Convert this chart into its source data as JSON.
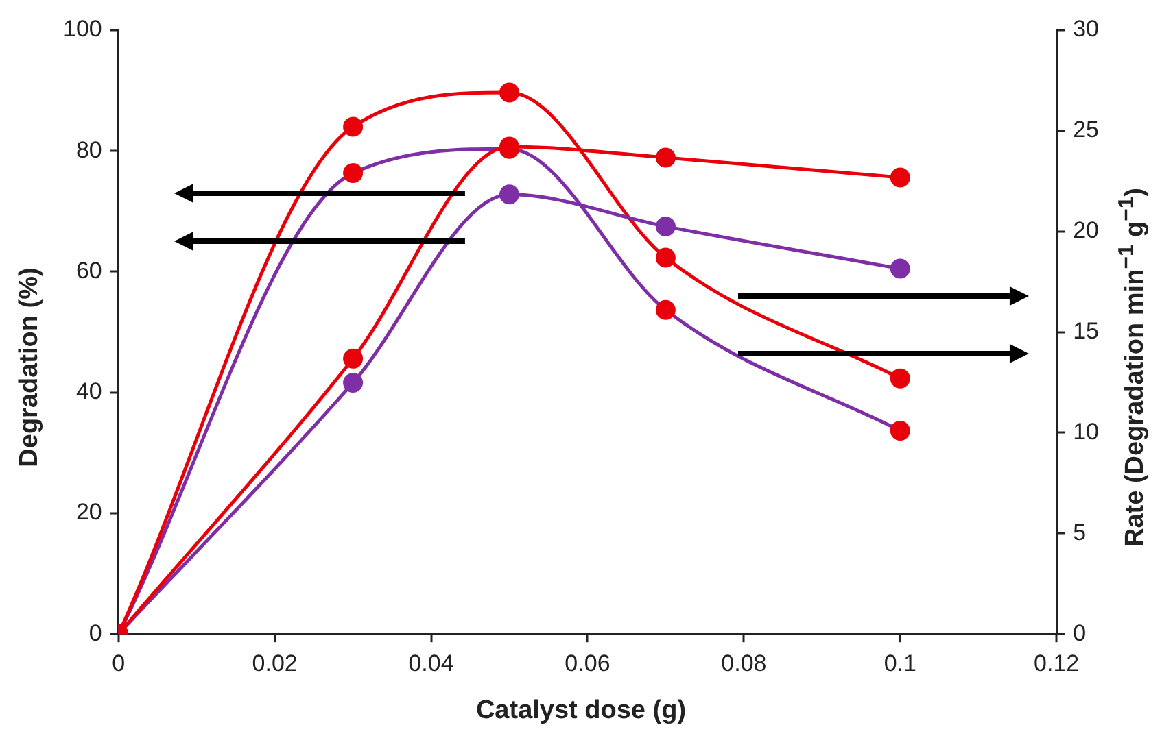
{
  "chart_data": {
    "type": "line",
    "xlabel": "Catalyst dose (g)",
    "ylabel": "Degradation (%)",
    "y2label": "Rate (Degradation min$^{−1}$ g$^{−1}$)",
    "x": [
      0,
      0.03,
      0.05,
      0.07,
      0.1
    ],
    "series": [
      {
        "color": "#e8000b",
        "values": [
          0,
          45.6,
          80.7,
          78.9,
          75.6
        ]
      },
      {
        "color": "#7e2fa5",
        "values": [
          0,
          41.6,
          72.8,
          67.5,
          60.5
        ]
      },
      {
        "color": "#e8000b",
        "axis": "y2",
        "values": [
          0,
          25.2,
          26.9,
          18.7,
          12.7
        ]
      },
      {
        "color": "#7e2fa5",
        "colors": [
          "#e8000b",
          "#e8000b",
          "#e8000b",
          "#e8000b",
          "#e8000b"
        ],
        "axis": "y2",
        "values": [
          0,
          22.9,
          24.1,
          16.1,
          10.1
        ]
      }
    ],
    "xlim": [
      0,
      0.12
    ],
    "xticks": [
      0,
      0.02,
      0.04,
      0.06,
      0.08,
      0.1,
      0.12
    ],
    "ylim": [
      0,
      100
    ],
    "yticks": [
      0,
      20,
      40,
      60,
      80,
      100
    ],
    "y2lim": [
      0,
      30
    ],
    "y2ticks": [
      0,
      5,
      10,
      15,
      20,
      25,
      30
    ],
    "grid": false,
    "legend": false,
    "marker": "circle",
    "line_style": "solid"
  }
}
